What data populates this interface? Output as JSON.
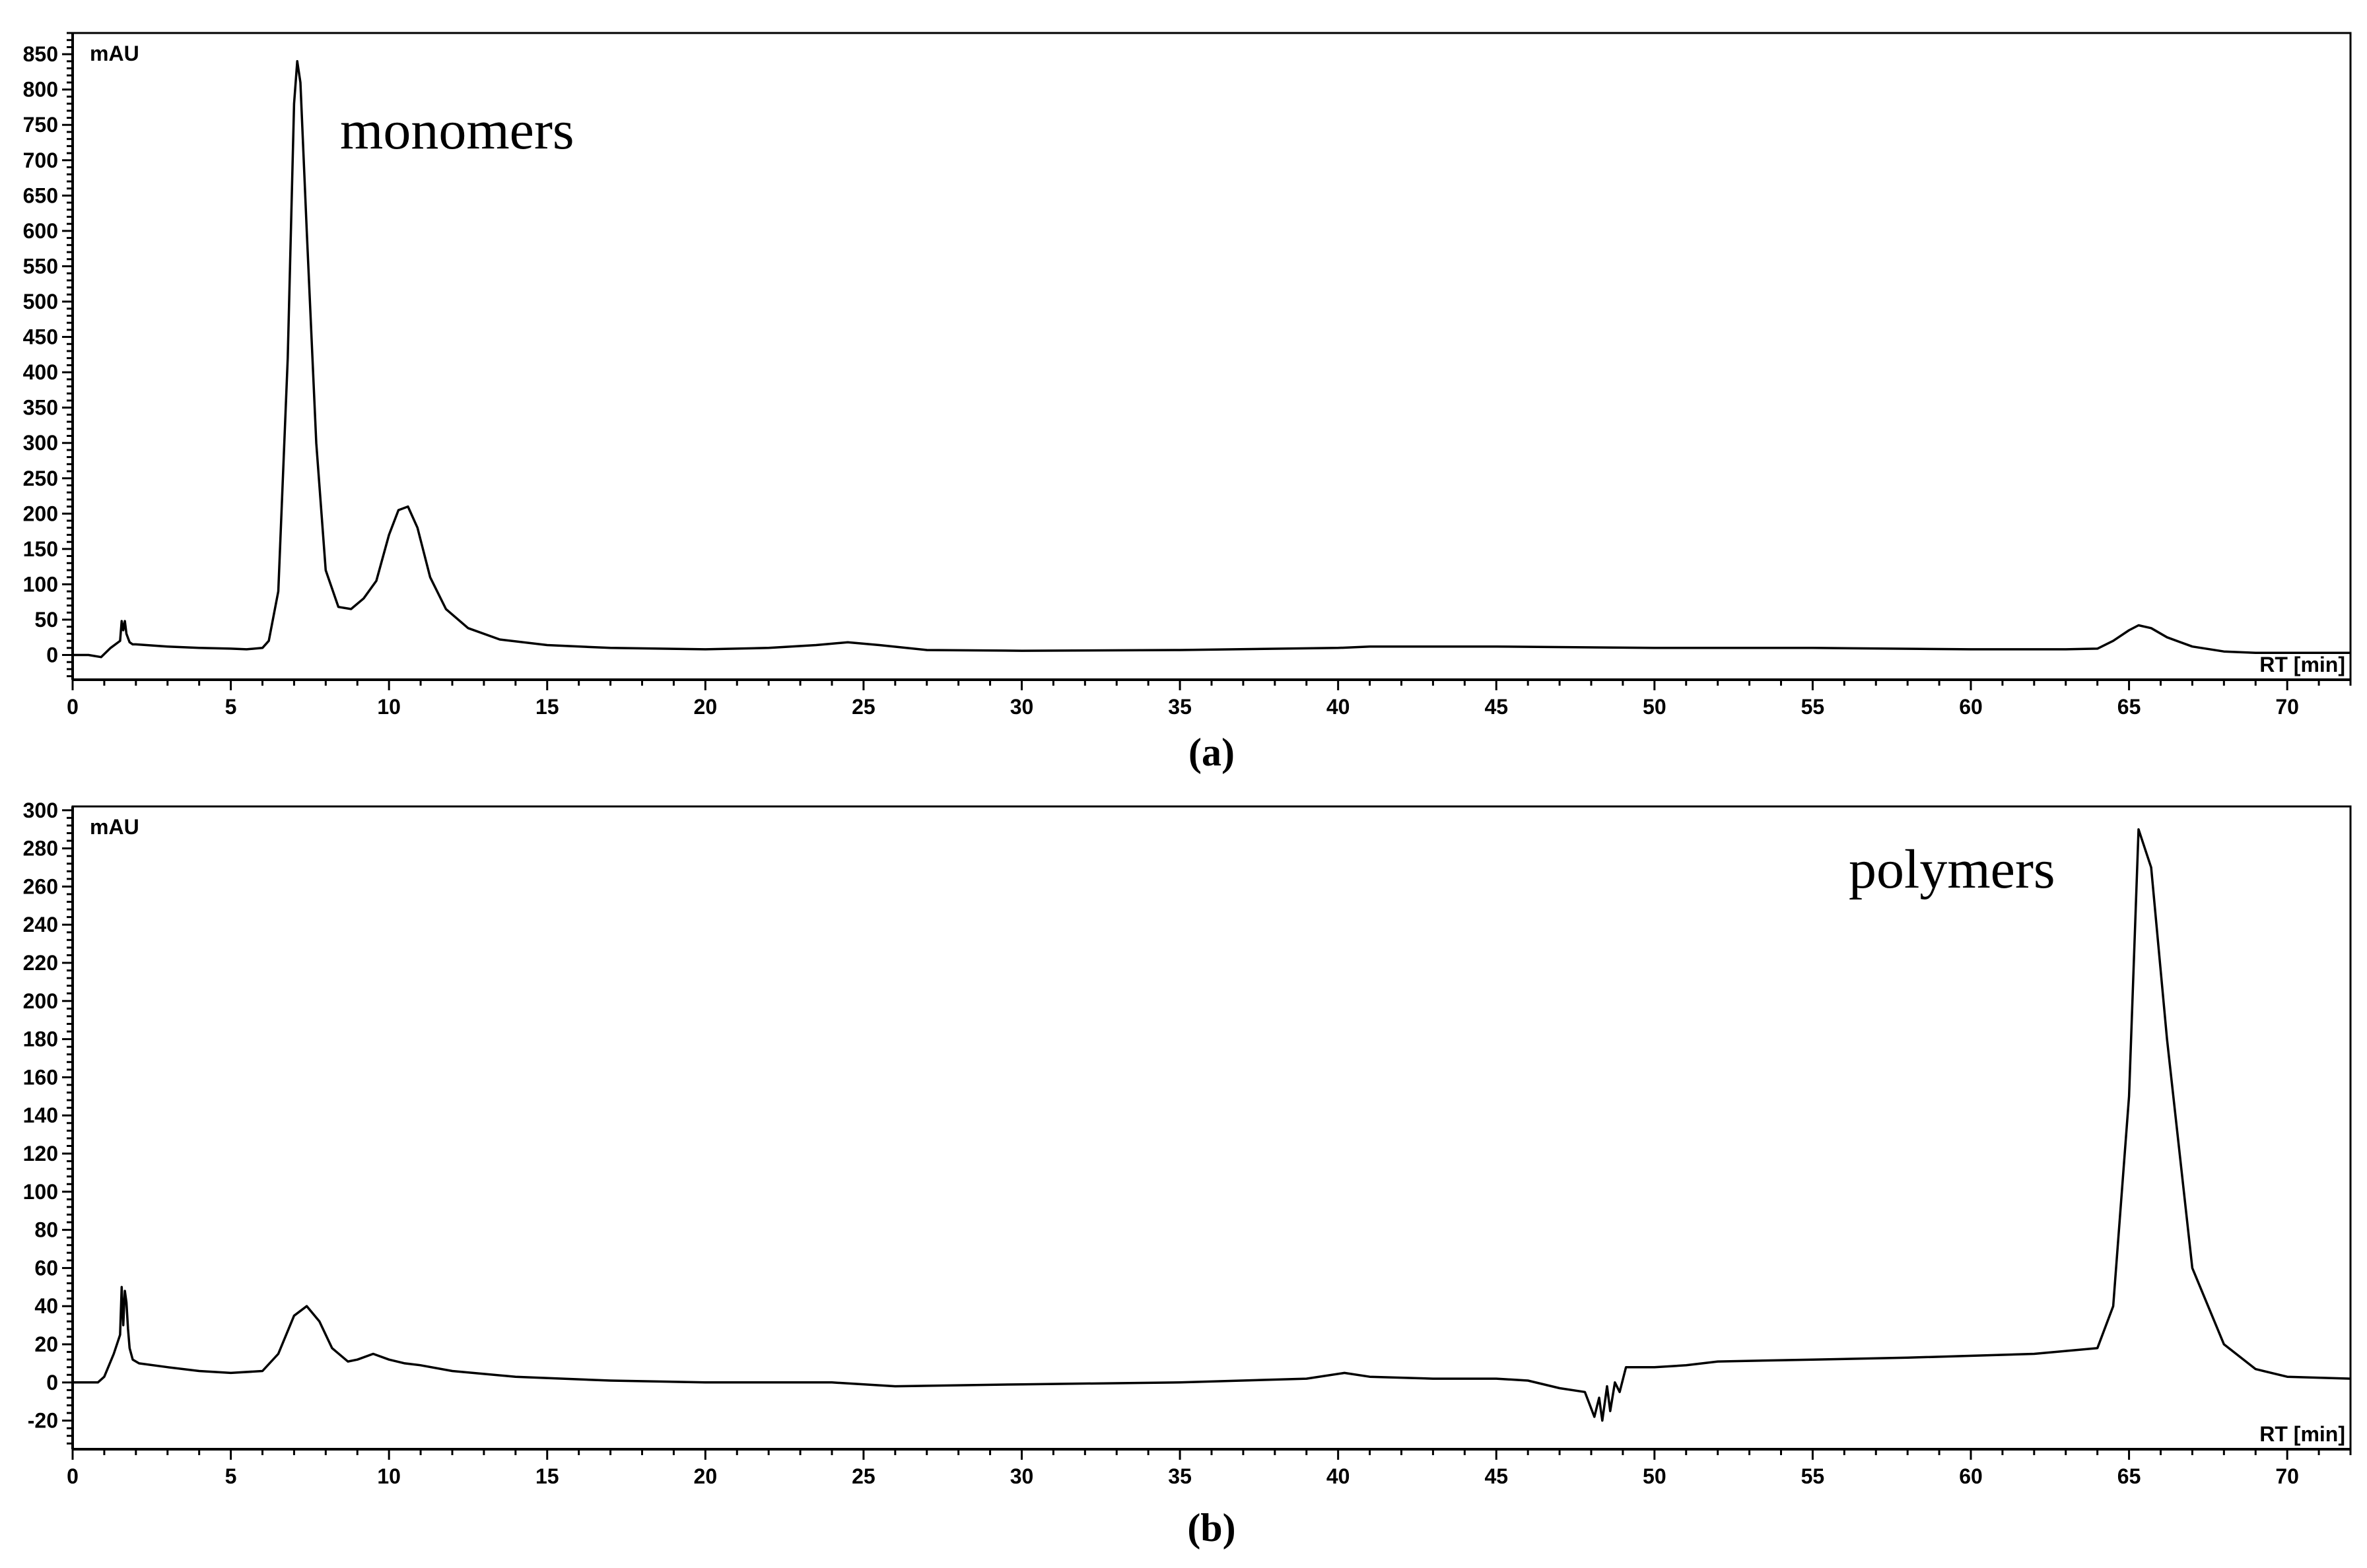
{
  "chart_data": [
    {
      "type": "line",
      "panel_label": "(a)",
      "ylabel": "mAU",
      "xlabel": "RT [min]",
      "annotation": "monomers",
      "xlim": [
        0,
        72
      ],
      "ylim": [
        -35,
        880
      ],
      "xticks": [
        0,
        5,
        10,
        15,
        20,
        25,
        30,
        35,
        40,
        45,
        50,
        55,
        60,
        65,
        70
      ],
      "yticks": [
        0,
        50,
        100,
        150,
        200,
        250,
        300,
        350,
        400,
        450,
        500,
        550,
        600,
        650,
        700,
        750,
        800,
        850
      ],
      "series": [
        {
          "x": [
            0,
            0.5,
            0.9,
            1.2,
            1.5,
            1.55,
            1.6,
            1.65,
            1.7,
            1.8,
            1.9,
            2.0,
            3.0,
            4.0,
            5.0,
            5.5,
            6.0,
            6.2,
            6.5,
            6.8,
            7.0,
            7.1,
            7.2,
            7.4,
            7.7,
            8.0,
            8.4,
            8.8,
            9.2,
            9.6,
            10.0,
            10.3,
            10.6,
            10.9,
            11.3,
            11.8,
            12.5,
            13.5,
            15,
            17,
            20,
            22,
            23.5,
            24.5,
            25.5,
            27,
            30,
            35,
            40,
            41,
            42,
            45,
            50,
            55,
            60,
            63,
            64,
            64.5,
            65,
            65.3,
            65.7,
            66.2,
            67,
            68,
            69,
            72
          ],
          "y": [
            0,
            0,
            -3,
            10,
            20,
            48,
            35,
            48,
            30,
            18,
            15,
            15,
            12,
            10,
            9,
            8,
            10,
            20,
            90,
            420,
            780,
            840,
            810,
            600,
            300,
            120,
            68,
            65,
            80,
            105,
            170,
            205,
            210,
            180,
            110,
            65,
            38,
            22,
            14,
            10,
            8,
            10,
            14,
            18,
            14,
            7,
            6,
            7,
            10,
            12,
            12,
            12,
            10,
            10,
            8,
            8,
            9,
            20,
            35,
            42,
            38,
            25,
            12,
            5,
            3,
            3
          ]
        }
      ]
    },
    {
      "type": "line",
      "panel_label": "(b)",
      "ylabel": "mAU",
      "xlabel": "RT [min]",
      "annotation": "polymers",
      "xlim": [
        0,
        72
      ],
      "ylim": [
        -35,
        302
      ],
      "xticks": [
        0,
        5,
        10,
        15,
        20,
        25,
        30,
        35,
        40,
        45,
        50,
        55,
        60,
        65,
        70
      ],
      "yticks": [
        -20,
        0,
        20,
        40,
        60,
        80,
        100,
        120,
        140,
        160,
        180,
        200,
        220,
        240,
        260,
        280,
        300
      ],
      "series": [
        {
          "x": [
            0,
            0.8,
            1.0,
            1.3,
            1.5,
            1.55,
            1.6,
            1.65,
            1.7,
            1.75,
            1.8,
            1.9,
            2.1,
            3.0,
            4.0,
            5.0,
            6.0,
            6.5,
            7.0,
            7.4,
            7.8,
            8.2,
            8.7,
            9.0,
            9.5,
            10.0,
            10.5,
            11,
            12,
            14,
            17,
            20,
            24,
            26,
            30,
            35,
            39,
            40.2,
            41,
            43,
            45,
            46,
            47,
            47.8,
            48.1,
            48.25,
            48.35,
            48.5,
            48.6,
            48.75,
            48.9,
            49.1,
            50,
            51,
            52,
            55,
            58,
            62,
            64,
            64.5,
            65,
            65.3,
            65.7,
            66.2,
            67,
            68,
            69,
            70,
            72
          ],
          "y": [
            0,
            0,
            3,
            15,
            25,
            50,
            30,
            48,
            42,
            28,
            18,
            12,
            10,
            8,
            6,
            5,
            6,
            15,
            35,
            40,
            32,
            18,
            11,
            12,
            15,
            12,
            10,
            9,
            6,
            3,
            1,
            0,
            0,
            -2,
            -1,
            0,
            2,
            5,
            3,
            2,
            2,
            1,
            -3,
            -5,
            -18,
            -8,
            -20,
            -2,
            -15,
            0,
            -5,
            8,
            8,
            9,
            11,
            12,
            13,
            15,
            18,
            40,
            150,
            290,
            270,
            180,
            60,
            20,
            7,
            3,
            2
          ]
        }
      ]
    }
  ]
}
